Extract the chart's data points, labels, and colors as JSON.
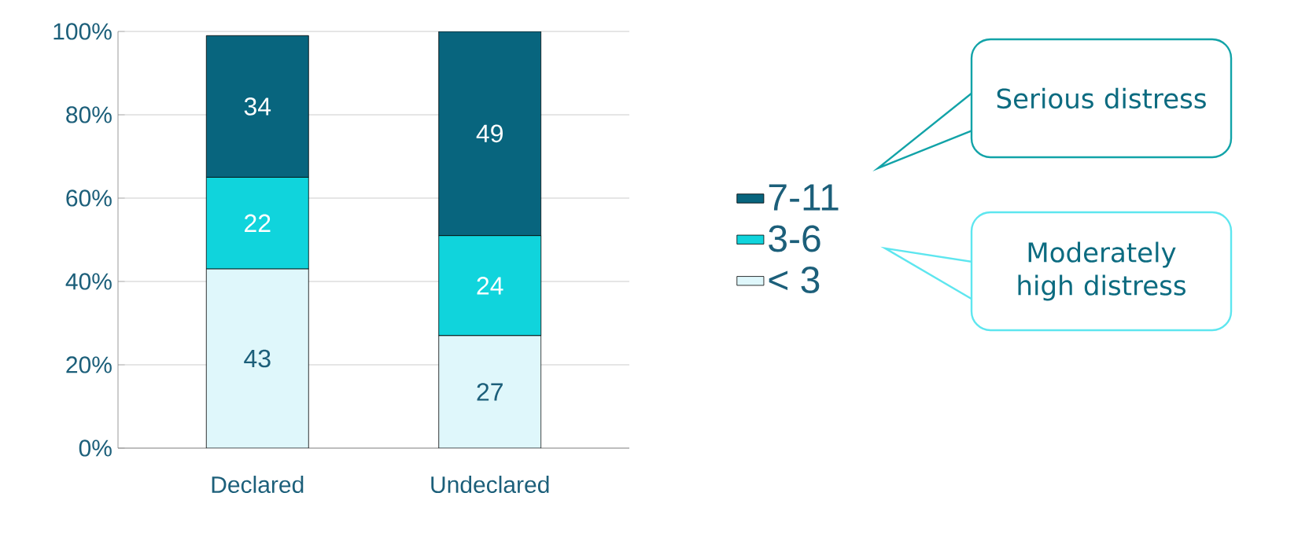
{
  "chart_data": {
    "type": "bar",
    "stacked": true,
    "categories": [
      "Declared",
      "Undeclared"
    ],
    "series": [
      {
        "name": "< 3",
        "color": "#dff7fb",
        "values": [
          43,
          27
        ]
      },
      {
        "name": "3-6",
        "color": "#10d4dc",
        "values": [
          22,
          24
        ]
      },
      {
        "name": "7-11",
        "color": "#08657e",
        "values": [
          34,
          49
        ]
      }
    ],
    "ylim": [
      0,
      100
    ],
    "yticks": [
      {
        "value": 0,
        "label": "0%"
      },
      {
        "value": 20,
        "label": "20%"
      },
      {
        "value": 40,
        "label": "40%"
      },
      {
        "value": 60,
        "label": "60%"
      },
      {
        "value": 80,
        "label": "80%"
      },
      {
        "value": 100,
        "label": "100%"
      }
    ],
    "grid": "y",
    "legend": "right",
    "data_labels": true,
    "annotations": [
      "Serious distress",
      "Moderately high distress"
    ]
  }
}
